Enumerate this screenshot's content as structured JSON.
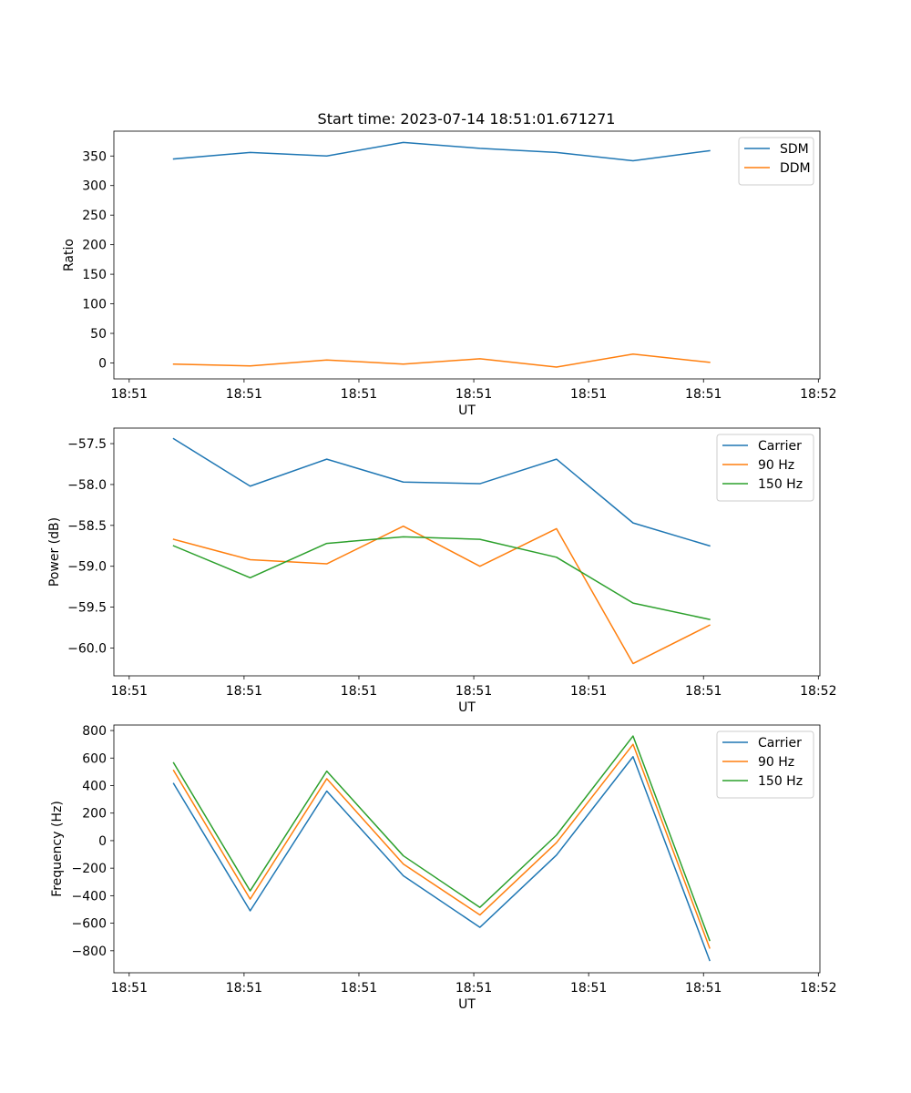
{
  "figure": {
    "title": "Start time: 2023-07-14 18:51:01.671271"
  },
  "chart_data": [
    {
      "type": "line",
      "title": "Start time: 2023-07-14 18:51:01.671271",
      "xlabel": "UT",
      "ylabel": "Ratio",
      "x": [
        1,
        2,
        3,
        4,
        5,
        6,
        7,
        8
      ],
      "xlim": [
        0.22,
        9.44
      ],
      "xticks": [
        0.42,
        1.92,
        3.42,
        4.92,
        6.42,
        7.92,
        9.42
      ],
      "xtick_labels": [
        "18:51",
        "18:51",
        "18:51",
        "18:51",
        "18:51",
        "18:51",
        "18:52"
      ],
      "ylim": [
        -27,
        392
      ],
      "yticks": [
        0,
        50,
        100,
        150,
        200,
        250,
        300,
        350
      ],
      "ytick_labels": [
        "0",
        "50",
        "100",
        "150",
        "200",
        "250",
        "300",
        "350"
      ],
      "legend_position": "upper right",
      "series": [
        {
          "name": "SDM",
          "color": "#1f77b4",
          "values": [
            345,
            356,
            350,
            373,
            363,
            356,
            342,
            359
          ]
        },
        {
          "name": "DDM",
          "color": "#ff7f0e",
          "values": [
            -2,
            -5,
            5,
            -2,
            7,
            -7,
            15,
            1
          ]
        }
      ]
    },
    {
      "type": "line",
      "title": "",
      "xlabel": "UT",
      "ylabel": "Power (dB)",
      "x": [
        1,
        2,
        3,
        4,
        5,
        6,
        7,
        8
      ],
      "xlim": [
        0.22,
        9.44
      ],
      "xticks": [
        0.42,
        1.92,
        3.42,
        4.92,
        6.42,
        7.92,
        9.42
      ],
      "xtick_labels": [
        "18:51",
        "18:51",
        "18:51",
        "18:51",
        "18:51",
        "18:51",
        "18:52"
      ],
      "ylim": [
        -60.34,
        -57.31
      ],
      "yticks": [
        -60.0,
        -59.5,
        -59.0,
        -58.5,
        -58.0,
        -57.5
      ],
      "ytick_labels": [
        "−60.0",
        "−59.5",
        "−59.0",
        "−58.5",
        "−58.0",
        "−57.5"
      ],
      "legend_position": "upper right",
      "series": [
        {
          "name": "Carrier",
          "color": "#1f77b4",
          "values": [
            -57.44,
            -58.02,
            -57.69,
            -57.97,
            -57.99,
            -57.69,
            -58.47,
            -58.75
          ]
        },
        {
          "name": "90 Hz",
          "color": "#ff7f0e",
          "values": [
            -58.67,
            -58.92,
            -58.97,
            -58.51,
            -59.0,
            -58.54,
            -60.19,
            -59.72
          ]
        },
        {
          "name": "150 Hz",
          "color": "#2ca02c",
          "values": [
            -58.75,
            -59.14,
            -58.72,
            -58.64,
            -58.67,
            -58.89,
            -59.45,
            -59.65
          ]
        }
      ]
    },
    {
      "type": "line",
      "title": "",
      "xlabel": "UT",
      "ylabel": "Frequency (Hz)",
      "x": [
        1,
        2,
        3,
        4,
        5,
        6,
        7,
        8
      ],
      "xlim": [
        0.22,
        9.44
      ],
      "xticks": [
        0.42,
        1.92,
        3.42,
        4.92,
        6.42,
        7.92,
        9.42
      ],
      "xtick_labels": [
        "18:51",
        "18:51",
        "18:51",
        "18:51",
        "18:51",
        "18:51",
        "18:52"
      ],
      "ylim": [
        -960,
        840
      ],
      "yticks": [
        -800,
        -600,
        -400,
        -200,
        0,
        200,
        400,
        600,
        800
      ],
      "ytick_labels": [
        "−800",
        "−600",
        "−400",
        "−200",
        "0",
        "200",
        "400",
        "600",
        "800"
      ],
      "legend_position": "upper right",
      "series": [
        {
          "name": "Carrier",
          "color": "#1f77b4",
          "values": [
            415,
            -510,
            360,
            -255,
            -630,
            -105,
            610,
            -870
          ]
        },
        {
          "name": "90 Hz",
          "color": "#ff7f0e",
          "values": [
            510,
            -425,
            450,
            -170,
            -540,
            -15,
            700,
            -780
          ]
        },
        {
          "name": "150 Hz",
          "color": "#2ca02c",
          "values": [
            565,
            -365,
            505,
            -110,
            -485,
            40,
            760,
            -725
          ]
        }
      ]
    }
  ]
}
